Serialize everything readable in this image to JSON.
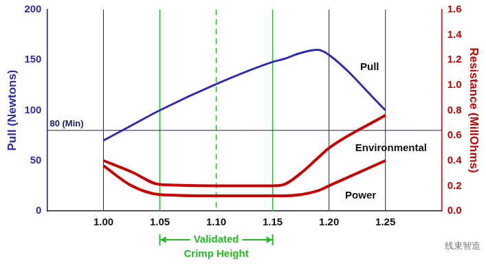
{
  "chart_data": {
    "type": "line",
    "x": [
      1.0,
      1.025,
      1.05,
      1.1,
      1.15,
      1.16,
      1.175,
      1.19,
      1.2,
      1.25
    ],
    "series": [
      {
        "name": "Pull",
        "color": "#2b2bb5",
        "axis": "y",
        "values": [
          70,
          85,
          100,
          126,
          148,
          151,
          157,
          160,
          155,
          100
        ]
      },
      {
        "name": "Environmental",
        "color": "#cc0000",
        "axis": "y2",
        "values": [
          0.4,
          0.31,
          0.21,
          0.2,
          0.2,
          0.21,
          0.3,
          0.42,
          0.5,
          0.76
        ]
      },
      {
        "name": "Power",
        "color": "#cc0000",
        "axis": "y2",
        "values": [
          0.36,
          0.2,
          0.13,
          0.12,
          0.12,
          0.12,
          0.13,
          0.16,
          0.2,
          0.4
        ]
      }
    ],
    "y_label": "Pull (Newtons)",
    "y2_label": "Resistance (MillOhms)",
    "xlim": [
      0.95,
      1.3
    ],
    "xticks": [
      {
        "value": 1.0,
        "label": "1.00"
      },
      1.05,
      {
        "value": 1.1,
        "label": "1.10"
      },
      1.15,
      {
        "value": 1.2,
        "label": "1.20"
      },
      1.25
    ],
    "ylim": [
      0,
      200
    ],
    "yticks": [
      0,
      50,
      100,
      150,
      200
    ],
    "y2lim": [
      0,
      1.6
    ],
    "y2ticks": [
      {
        "value": 0,
        "label": "0.0"
      },
      0.2,
      0.4,
      0.6,
      0.8,
      {
        "value": 1.0,
        "label": "1.0"
      },
      1.2,
      1.4,
      1.6
    ],
    "grid": "x",
    "legend": "none",
    "min_line": {
      "value": 80,
      "label": "80 (Min)"
    },
    "validated_range": {
      "from": 1.05,
      "mid": 1.1,
      "to": 1.15,
      "label": [
        "Validated",
        "Crimp Height"
      ],
      "color": "#22bb22"
    },
    "annotations": [
      {
        "text": "Pull",
        "x": 1.236,
        "y": 143,
        "axis": "y"
      },
      {
        "text": "Environmental",
        "x": 1.255,
        "y": 0.5,
        "axis": "y2"
      },
      {
        "text": "Power",
        "x": 1.228,
        "y": 0.12,
        "axis": "y2"
      }
    ],
    "watermark": "线束智造"
  }
}
